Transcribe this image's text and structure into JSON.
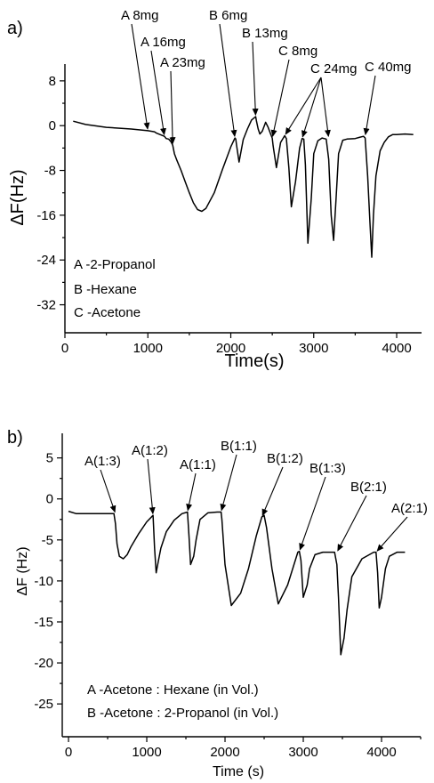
{
  "chart_data": [
    {
      "panel": "a)",
      "type": "line",
      "xlabel": "Time(s)",
      "ylabel": "ΔF(Hz)",
      "xlim": [
        0,
        4300
      ],
      "ylim": [
        -37,
        11
      ],
      "xticks": [
        0,
        1000,
        2000,
        3000,
        4000
      ],
      "yticks": [
        8,
        0,
        -8,
        -16,
        -24,
        -32
      ],
      "series": [
        {
          "x": [
            100,
            250,
            500,
            800,
            1000,
            1080,
            1100,
            1150,
            1200,
            1220,
            1250,
            1280,
            1300,
            1320,
            1350,
            1400,
            1450,
            1500,
            1550,
            1600,
            1650,
            1700,
            1800,
            1900,
            2000,
            2050,
            2060,
            2070,
            2100,
            2150,
            2200,
            2250,
            2300,
            2310,
            2330,
            2350,
            2380,
            2400,
            2420,
            2450,
            2480,
            2500,
            2510,
            2550,
            2600,
            2650,
            2670,
            2700,
            2730,
            2780,
            2830,
            2860,
            2880,
            2900,
            2930,
            2970,
            3000,
            3050,
            3100,
            3150,
            3180,
            3210,
            3240,
            3270,
            3300,
            3350,
            3400,
            3500,
            3550,
            3600,
            3620,
            3650,
            3680,
            3700,
            3720,
            3750,
            3800,
            3850,
            3900,
            3950,
            4000,
            4100,
            4200
          ],
          "y": [
            0.8,
            0.2,
            -0.3,
            -0.6,
            -0.9,
            -1.1,
            -1.3,
            -1.6,
            -1.9,
            -2.3,
            -2.4,
            -2.9,
            -3.5,
            -5.0,
            -6.2,
            -8.0,
            -10.0,
            -12.0,
            -13.8,
            -15.0,
            -15.3,
            -14.8,
            -12.0,
            -7.8,
            -3.8,
            -2.2,
            -2.4,
            -3.5,
            -6.5,
            -2.5,
            -0.6,
            1.0,
            1.6,
            0.8,
            -0.6,
            -1.5,
            -1.0,
            -0.2,
            0.6,
            -0.3,
            -1.5,
            -2.2,
            -3.6,
            -7.5,
            -3.0,
            -1.8,
            -2.3,
            -7.5,
            -14.5,
            -10.0,
            -4.0,
            -2.3,
            -2.4,
            -7.0,
            -21.0,
            -13.0,
            -5.0,
            -2.7,
            -2.2,
            -2.4,
            -6.0,
            -16.0,
            -20.5,
            -13.0,
            -5.0,
            -2.6,
            -2.4,
            -2.3,
            -2.1,
            -1.9,
            -2.2,
            -9.0,
            -18.0,
            -23.5,
            -16.0,
            -9.0,
            -4.5,
            -3.0,
            -2.0,
            -1.6,
            -1.6,
            -1.5,
            -1.6
          ]
        }
      ],
      "annotations": [
        {
          "text": "A 8mg",
          "target_x": 1000,
          "target_y": -0.9
        },
        {
          "text": "A 16mg",
          "target_x": 1200,
          "target_y": -1.9
        },
        {
          "text": "A 23mg",
          "target_x": 1300,
          "target_y": -3.5
        },
        {
          "text": "B 6mg",
          "target_x": 2050,
          "target_y": -2.2
        },
        {
          "text": "B 13mg",
          "target_x": 2300,
          "target_y": 1.6
        },
        {
          "text": "C 8mg",
          "target_x": 2500,
          "target_y": -2.2
        },
        {
          "text": "C 24mg",
          "target_x": 2650,
          "target_y": -1.8
        },
        {
          "text": "",
          "target_x": 2860,
          "target_y": -2.3
        },
        {
          "text": "",
          "target_x": 3180,
          "target_y": -2.2
        },
        {
          "text": "C 40mg",
          "target_x": 3620,
          "target_y": -1.9
        }
      ],
      "legend": [
        "A -2-Propanol",
        "B -Hexane",
        "C -Acetone"
      ],
      "grid": false
    },
    {
      "panel": "b)",
      "type": "line",
      "xlabel": "Time (s)",
      "ylabel": "ΔF (Hz)",
      "xlim": [
        -80,
        4500
      ],
      "ylim": [
        -29,
        8
      ],
      "xticks": [
        0,
        1000,
        2000,
        3000,
        4000
      ],
      "yticks": [
        5,
        0,
        -5,
        -10,
        -15,
        -20,
        -25
      ],
      "series": [
        {
          "x": [
            0,
            100,
            300,
            500,
            580,
            600,
            620,
            650,
            700,
            750,
            800,
            900,
            1000,
            1080,
            1100,
            1120,
            1150,
            1180,
            1250,
            1350,
            1450,
            1520,
            1540,
            1560,
            1600,
            1630,
            1680,
            1780,
            1900,
            1950,
            1960,
            2000,
            2080,
            2200,
            2300,
            2400,
            2470,
            2500,
            2530,
            2600,
            2680,
            2800,
            2930,
            2950,
            2970,
            3000,
            3050,
            3080,
            3150,
            3250,
            3400,
            3430,
            3450,
            3480,
            3520,
            3560,
            3620,
            3750,
            3900,
            3930,
            3950,
            3970,
            4000,
            4050,
            4100,
            4200,
            4300
          ],
          "y": [
            -1.5,
            -1.8,
            -1.8,
            -1.8,
            -1.8,
            -3.0,
            -5.5,
            -7.0,
            -7.3,
            -6.8,
            -5.8,
            -4.2,
            -2.8,
            -2.0,
            -6.0,
            -9.0,
            -7.5,
            -6.0,
            -4.0,
            -2.6,
            -1.8,
            -1.6,
            -4.5,
            -8.0,
            -7.0,
            -5.0,
            -2.5,
            -1.7,
            -1.6,
            -1.6,
            -2.5,
            -8.0,
            -13.0,
            -11.5,
            -8.5,
            -4.5,
            -2.2,
            -2.0,
            -3.5,
            -8.5,
            -12.8,
            -10.5,
            -6.5,
            -6.4,
            -7.5,
            -12.0,
            -10.5,
            -8.5,
            -6.8,
            -6.5,
            -6.5,
            -8.0,
            -12.0,
            -19.0,
            -17.0,
            -13.5,
            -9.5,
            -7.3,
            -6.5,
            -6.5,
            -9.0,
            -13.3,
            -12.0,
            -8.5,
            -7.0,
            -6.5,
            -6.5
          ]
        }
      ],
      "annotations": [
        {
          "text": "A(1:3)",
          "target_x": 600,
          "target_y": -1.8
        },
        {
          "text": "A(1:2)",
          "target_x": 1080,
          "target_y": -2.0
        },
        {
          "text": "A(1:1)",
          "target_x": 1520,
          "target_y": -1.6
        },
        {
          "text": "B(1:1)",
          "target_x": 1950,
          "target_y": -1.6
        },
        {
          "text": "B(1:2)",
          "target_x": 2470,
          "target_y": -2.2
        },
        {
          "text": "B(1:3)",
          "target_x": 2950,
          "target_y": -6.4
        },
        {
          "text": "B(2:1)",
          "target_x": 3430,
          "target_y": -6.5
        },
        {
          "text": "A(2:1)",
          "target_x": 3930,
          "target_y": -6.5
        }
      ],
      "legend": [
        "A -Acetone : Hexane (in Vol.)",
        "B -Acetone : 2-Propanol (in Vol.)"
      ],
      "grid": false
    }
  ]
}
